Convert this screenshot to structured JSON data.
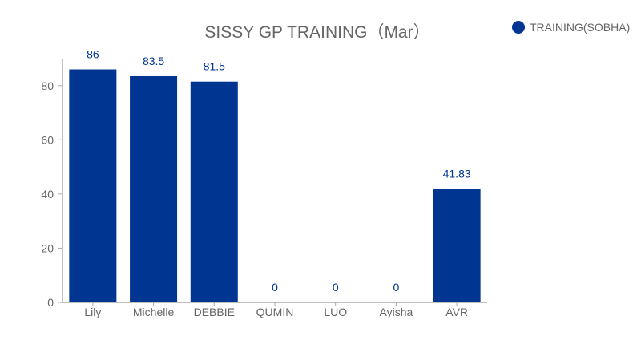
{
  "chart_data": {
    "type": "bar",
    "title": "SISSY GP TRAINING（Mar）",
    "categories": [
      "Lily",
      "Michelle",
      "DEBBIE",
      "QUMIN",
      "LUO",
      "Ayisha",
      "AVR"
    ],
    "series": [
      {
        "name": "TRAINING(SOBHA)",
        "values": [
          86,
          83.5,
          81.5,
          0,
          0,
          0,
          41.83
        ],
        "color": "#003591"
      }
    ],
    "data_labels": [
      "86",
      "83.5",
      "81.5",
      "0",
      "0",
      "0",
      "41.83"
    ],
    "xlabel": "",
    "ylabel": "",
    "ylim": [
      0,
      90
    ],
    "yticks": [
      0,
      20,
      40,
      60,
      80
    ],
    "grid": false,
    "legend_position": "top-right",
    "label_color": "#003591",
    "axis_text_color": "#666666"
  }
}
